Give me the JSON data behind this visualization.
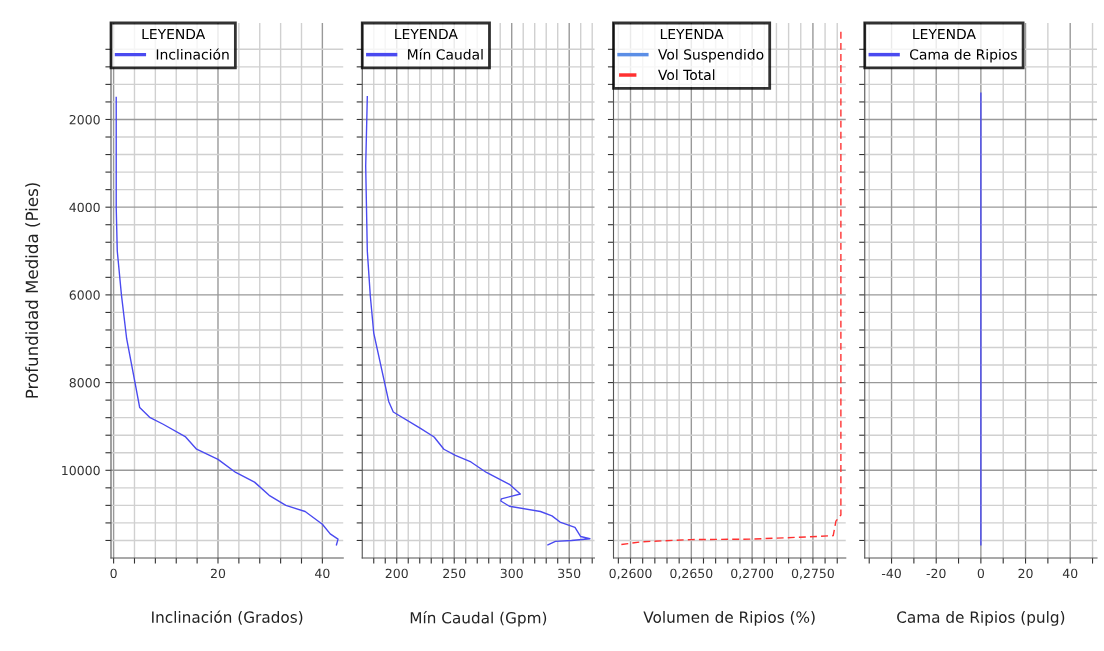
{
  "chart_data": [
    {
      "type": "line",
      "xlabel": "Inclinación (Grados)",
      "ylabel": "Profundidad Medida (Pies)",
      "legend_title": "LEYENDA",
      "legend": "top left",
      "grid": true,
      "series": [
        {
          "name": "Inclinación",
          "color": "#4a4af0",
          "line_style": "solid",
          "x": [
            0.5,
            0.5,
            0.5,
            0.7,
            1.5,
            2.5,
            4.1,
            5,
            7,
            9.5,
            13.8,
            15.9,
            20,
            23.4,
            27,
            29.8,
            33,
            36.7,
            40,
            41.5,
            43,
            42.7
          ],
          "values": [
            1500,
            2000,
            4000,
            5000,
            6000,
            7000,
            8000,
            8570,
            8800,
            8950,
            9240,
            9520,
            9750,
            10050,
            10270,
            10570,
            10800,
            10940,
            11230,
            11450,
            11570,
            11700
          ]
        }
      ],
      "xlim": [
        -0.5,
        44
      ],
      "xticks": [
        0,
        {
          "value": 4,
          "label": null
        },
        {
          "value": 8,
          "label": null
        },
        {
          "value": 12,
          "label": null
        },
        {
          "value": 16,
          "label": null
        },
        20,
        {
          "value": 24,
          "label": null
        },
        {
          "value": 28,
          "label": null
        },
        {
          "value": 32,
          "label": null
        },
        {
          "value": 36,
          "label": null
        },
        40
      ],
      "ylim": [
        12000,
        -200
      ],
      "yticks": [
        {
          "value": 400,
          "label": null
        },
        {
          "value": 800,
          "label": null
        },
        {
          "value": 1200,
          "label": null
        },
        {
          "value": 1600,
          "label": null
        },
        2000,
        {
          "value": 2400,
          "label": null
        },
        {
          "value": 2800,
          "label": null
        },
        {
          "value": 3200,
          "label": null
        },
        {
          "value": 3600,
          "label": null
        },
        4000,
        {
          "value": 4400,
          "label": null
        },
        {
          "value": 4800,
          "label": null
        },
        {
          "value": 5200,
          "label": null
        },
        {
          "value": 5600,
          "label": null
        },
        6000,
        {
          "value": 6400,
          "label": null
        },
        {
          "value": 6800,
          "label": null
        },
        {
          "value": 7200,
          "label": null
        },
        {
          "value": 7600,
          "label": null
        },
        8000,
        {
          "value": 8400,
          "label": null
        },
        {
          "value": 8800,
          "label": null
        },
        {
          "value": 9200,
          "label": null
        },
        {
          "value": 9600,
          "label": null
        },
        10000,
        {
          "value": 10400,
          "label": null
        },
        {
          "value": 10800,
          "label": null
        },
        {
          "value": 11200,
          "label": null
        },
        {
          "value": 11600,
          "label": null
        }
      ]
    },
    {
      "type": "line",
      "xlabel": "Mín Caudal (Gpm)",
      "legend_title": "LEYENDA",
      "legend": "top left",
      "grid": true,
      "tick_labels": "x",
      "series": [
        {
          "name": "Mín Caudal",
          "color": "#4a4af0",
          "line_style": "solid",
          "x": [
            174.4,
            173,
            174.4,
            177,
            180,
            193,
            197,
            221,
            232.5,
            241,
            251,
            264.5,
            278,
            298,
            307.5,
            291,
            290.5,
            298,
            325,
            335,
            342,
            355,
            360,
            368,
            352,
            338,
            331.5
          ],
          "values": [
            1480,
            3060,
            5000,
            6020,
            6870,
            8430,
            8670,
            9050,
            9240,
            9520,
            9660,
            9810,
            10050,
            10320,
            10540,
            10650,
            10700,
            10820,
            10940,
            11040,
            11180,
            11300,
            11510,
            11560,
            11600,
            11620,
            11700
          ]
        }
      ],
      "xlim": [
        170,
        372
      ],
      "xticks": [
        {
          "value": 180,
          "label": null
        },
        {
          "value": 190,
          "label": null
        },
        200,
        {
          "value": 210,
          "label": null
        },
        {
          "value": 220,
          "label": null
        },
        {
          "value": 230,
          "label": null
        },
        {
          "value": 240,
          "label": null
        },
        250,
        {
          "value": 260,
          "label": null
        },
        {
          "value": 270,
          "label": null
        },
        {
          "value": 280,
          "label": null
        },
        {
          "value": 290,
          "label": null
        },
        300,
        {
          "value": 310,
          "label": null
        },
        {
          "value": 320,
          "label": null
        },
        {
          "value": 330,
          "label": null
        },
        {
          "value": 340,
          "label": null
        },
        350,
        {
          "value": 360,
          "label": null
        },
        {
          "value": 370,
          "label": null
        }
      ],
      "ylim": [
        12000,
        -200
      ],
      "yticks": [
        {
          "value": 400,
          "label": null
        },
        {
          "value": 800,
          "label": null
        },
        {
          "value": 1200,
          "label": null
        },
        {
          "value": 1600,
          "label": null
        },
        2000,
        {
          "value": 2400,
          "label": null
        },
        {
          "value": 2800,
          "label": null
        },
        {
          "value": 3200,
          "label": null
        },
        {
          "value": 3600,
          "label": null
        },
        4000,
        {
          "value": 4400,
          "label": null
        },
        {
          "value": 4800,
          "label": null
        },
        {
          "value": 5200,
          "label": null
        },
        {
          "value": 5600,
          "label": null
        },
        6000,
        {
          "value": 6400,
          "label": null
        },
        {
          "value": 6800,
          "label": null
        },
        {
          "value": 7200,
          "label": null
        },
        {
          "value": 7600,
          "label": null
        },
        8000,
        {
          "value": 8400,
          "label": null
        },
        {
          "value": 8800,
          "label": null
        },
        {
          "value": 9200,
          "label": null
        },
        {
          "value": 9600,
          "label": null
        },
        10000,
        {
          "value": 10400,
          "label": null
        },
        {
          "value": 10800,
          "label": null
        },
        {
          "value": 11200,
          "label": null
        },
        {
          "value": 11600,
          "label": null
        }
      ]
    },
    {
      "type": "line",
      "xlabel": "Volumen de Ripios (%)",
      "legend_title": "LEYENDA",
      "legend": "top left",
      "grid": true,
      "tick_labels": "x",
      "series": [
        {
          "name": "Vol Suspendido",
          "color": "#5b8ee6",
          "line_style": "solid",
          "x": [
            null,
            null
          ],
          "values": [
            null,
            null
          ]
        },
        {
          "name": "Vol Total",
          "color": "#ff3030",
          "line_style": "dashed",
          "x": [
            0.2773,
            0.2773,
            0.27689,
            0.27667,
            0.27453,
            0.26979,
            0.265,
            0.2609,
            0.25905
          ],
          "values": [
            0,
            11020,
            11160,
            11490,
            11520,
            11570,
            11580,
            11630,
            11700
          ]
        }
      ],
      "xlim": [
        0.2586,
        0.2777
      ],
      "xticks": [
        {
          "value": 0.259,
          "label": null
        },
        {
          "value": 0.26,
          "label": "0,2600"
        },
        {
          "value": 0.261,
          "label": null
        },
        {
          "value": 0.262,
          "label": null
        },
        {
          "value": 0.263,
          "label": null
        },
        {
          "value": 0.264,
          "label": null
        },
        {
          "value": 0.265,
          "label": "0,2650"
        },
        {
          "value": 0.266,
          "label": null
        },
        {
          "value": 0.267,
          "label": null
        },
        {
          "value": 0.268,
          "label": null
        },
        {
          "value": 0.269,
          "label": null
        },
        {
          "value": 0.27,
          "label": "0,2700"
        },
        {
          "value": 0.271,
          "label": null
        },
        {
          "value": 0.272,
          "label": null
        },
        {
          "value": 0.273,
          "label": null
        },
        {
          "value": 0.274,
          "label": null
        },
        {
          "value": 0.275,
          "label": "0,2750"
        },
        {
          "value": 0.276,
          "label": null
        },
        {
          "value": 0.277,
          "label": null
        }
      ],
      "ylim": [
        12000,
        -200
      ],
      "yticks": [
        {
          "value": 400,
          "label": null
        },
        {
          "value": 800,
          "label": null
        },
        {
          "value": 1200,
          "label": null
        },
        {
          "value": 1600,
          "label": null
        },
        2000,
        {
          "value": 2400,
          "label": null
        },
        {
          "value": 2800,
          "label": null
        },
        {
          "value": 3200,
          "label": null
        },
        {
          "value": 3600,
          "label": null
        },
        4000,
        {
          "value": 4400,
          "label": null
        },
        {
          "value": 4800,
          "label": null
        },
        {
          "value": 5200,
          "label": null
        },
        {
          "value": 5600,
          "label": null
        },
        6000,
        {
          "value": 6400,
          "label": null
        },
        {
          "value": 6800,
          "label": null
        },
        {
          "value": 7200,
          "label": null
        },
        {
          "value": 7600,
          "label": null
        },
        8000,
        {
          "value": 8400,
          "label": null
        },
        {
          "value": 8800,
          "label": null
        },
        {
          "value": 9200,
          "label": null
        },
        {
          "value": 9600,
          "label": null
        },
        10000,
        {
          "value": 10400,
          "label": null
        },
        {
          "value": 10800,
          "label": null
        },
        {
          "value": 11200,
          "label": null
        },
        {
          "value": 11600,
          "label": null
        }
      ]
    },
    {
      "type": "line",
      "xlabel": "Cama de Ripios (pulg)",
      "legend_title": "LEYENDA",
      "legend": "top left",
      "grid": true,
      "tick_labels": "x",
      "series": [
        {
          "name": "Cama de Ripios",
          "color": "#4a4af0",
          "line_style": "solid",
          "x": [
            0,
            0
          ],
          "values": [
            1400,
            11700
          ]
        }
      ],
      "xlim": [
        -52,
        52
      ],
      "xticks": [
        {
          "value": -50,
          "label": null
        },
        -40,
        {
          "value": -30,
          "label": null
        },
        -20,
        {
          "value": -10,
          "label": null
        },
        0,
        {
          "value": 10,
          "label": null
        },
        20,
        {
          "value": 30,
          "label": null
        },
        40,
        {
          "value": 50,
          "label": null
        }
      ],
      "ylim": [
        12000,
        -200
      ],
      "yticks": [
        {
          "value": 400,
          "label": null
        },
        {
          "value": 800,
          "label": null
        },
        {
          "value": 1200,
          "label": null
        },
        {
          "value": 1600,
          "label": null
        },
        2000,
        {
          "value": 2400,
          "label": null
        },
        {
          "value": 2800,
          "label": null
        },
        {
          "value": 3200,
          "label": null
        },
        {
          "value": 3600,
          "label": null
        },
        4000,
        {
          "value": 4400,
          "label": null
        },
        {
          "value": 4800,
          "label": null
        },
        {
          "value": 5200,
          "label": null
        },
        {
          "value": 5600,
          "label": null
        },
        6000,
        {
          "value": 6400,
          "label": null
        },
        {
          "value": 6800,
          "label": null
        },
        {
          "value": 7200,
          "label": null
        },
        {
          "value": 7600,
          "label": null
        },
        8000,
        {
          "value": 8400,
          "label": null
        },
        {
          "value": 8800,
          "label": null
        },
        {
          "value": 9200,
          "label": null
        },
        {
          "value": 9600,
          "label": null
        },
        10000,
        {
          "value": 10400,
          "label": null
        },
        {
          "value": 10800,
          "label": null
        },
        {
          "value": 11200,
          "label": null
        },
        {
          "value": 11600,
          "label": null
        }
      ]
    }
  ]
}
